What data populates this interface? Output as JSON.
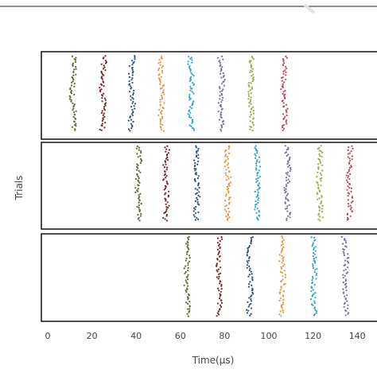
{
  "chart_data": {
    "type": "scatter",
    "subtype": "raster",
    "xlabel": "Time(μs)",
    "ylabel": "Trials",
    "xlim": [
      0,
      145
    ],
    "xticks": [
      0,
      20,
      40,
      60,
      80,
      100,
      120,
      140
    ],
    "panels": [
      {
        "burst_centers": [
          11.5,
          25,
          38,
          51.5,
          65,
          78.5,
          92,
          107
        ],
        "y_range": [
          0,
          1
        ]
      },
      {
        "burst_centers": [
          41,
          53.5,
          67.5,
          81.5,
          95,
          108.5,
          123,
          136.5
        ],
        "y_range": [
          0,
          1
        ]
      },
      {
        "burst_centers": [
          63,
          77.5,
          91.5,
          106,
          120.5,
          134.5
        ],
        "y_range": [
          0,
          1
        ]
      }
    ],
    "burst_width": 2.2,
    "points_per_burst": 55,
    "grid": false,
    "legend": "none",
    "colors": [
      "#556b2f",
      "#7b1e2b",
      "#2f4f6f",
      "#e8923a",
      "#2aa3c9",
      "#7d6a9e",
      "#9aaa3c",
      "#b8485a"
    ]
  }
}
